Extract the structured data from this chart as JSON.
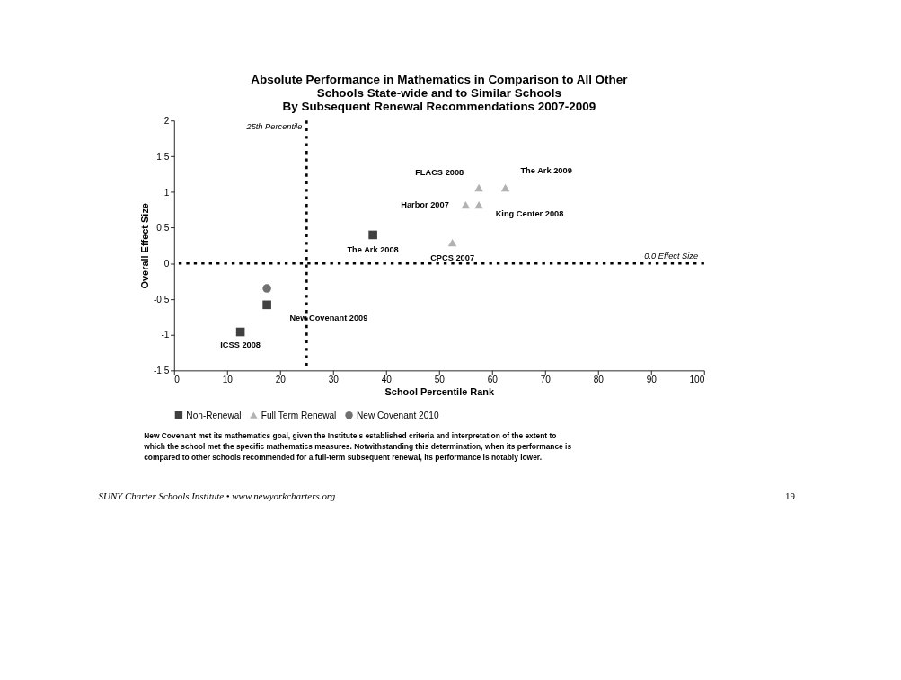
{
  "chart_data": {
    "type": "scatter",
    "title": [
      "Absolute Performance in Mathematics in Comparison to All Other",
      "Schools State-wide and to Similar Schools",
      "By Subsequent Renewal Recommendations 2007-2009"
    ],
    "xlabel": "School Percentile Rank",
    "ylabel": "Overall Effect Size",
    "xlim": [
      0,
      100
    ],
    "xticks": [
      0,
      10,
      20,
      30,
      40,
      50,
      60,
      70,
      80,
      90,
      100
    ],
    "ylim": [
      -1.5,
      2
    ],
    "yticks": [
      -1.5,
      -1,
      -0.5,
      0,
      0.5,
      1,
      1.5,
      2
    ],
    "grid": false,
    "legend": "bottom",
    "series": [
      {
        "name": "Non-Renewal",
        "color": "#404040",
        "marker": "square",
        "x": [
          12.5,
          17.5,
          37.5
        ],
        "values": [
          -0.96,
          -0.58,
          0.4
        ]
      },
      {
        "name": "Full Term Renewal",
        "color": "#b2b2b2",
        "marker": "triangle",
        "x": [
          57.5,
          62.5,
          55,
          57.5,
          52.5
        ],
        "values": [
          1.06,
          1.06,
          0.82,
          0.82,
          0.29
        ]
      },
      {
        "name": "New Covenant 2010",
        "color": "#707070",
        "marker": "circle",
        "x": [
          17.5
        ],
        "values": [
          -0.35
        ]
      }
    ],
    "ref_lines": [
      {
        "axis": "x",
        "value": 25,
        "label": "25th Percentile",
        "color": "#000000",
        "line_style": "dashed"
      },
      {
        "axis": "y",
        "value": 0,
        "label": "0.0 Effect Size",
        "color": "#000000",
        "line_style": "dashed"
      }
    ],
    "annotations": [
      {
        "text": "ICSS 2008",
        "x": 12.5,
        "y": -0.96
      },
      {
        "text": "New Covenant 2009",
        "x": 17.5,
        "y": -0.58
      },
      {
        "text": "The Ark 2008",
        "x": 37.5,
        "y": 0.4
      },
      {
        "text": "FLACS 2008",
        "x": 57.5,
        "y": 1.06
      },
      {
        "text": "The Ark 2009",
        "x": 62.5,
        "y": 1.06
      },
      {
        "text": "Harbor 2007",
        "x": 55,
        "y": 0.82
      },
      {
        "text": "King Center 2008",
        "x": 57.5,
        "y": 0.82
      },
      {
        "text": "CPCS 2007",
        "x": 52.5,
        "y": 0.29
      },
      "New Covenant met its mathematics goal, given the Institute's established criteria and interpretation of the extent to which the school met the specific mathematics measures.  Notwithstanding this determination, when its performance is compared to other schools recommended for a full-term subsequent renewal, its performance is notably lower.",
      "SUNY Charter Schools Institute • www.newyorkcharters.org",
      "19"
    ]
  }
}
